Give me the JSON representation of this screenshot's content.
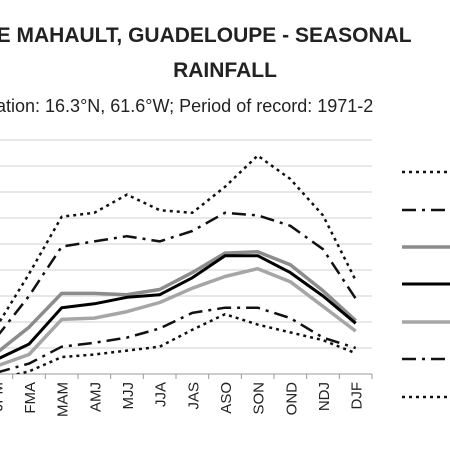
{
  "chart_data": {
    "type": "line",
    "title_line1": "LIE MAHAULT, GUADELOUPE - SEASONAL",
    "title_line2": "RAINFALL",
    "subtitle": "ation: 16.3°N, 61.6°W; Period of record: 1971-2",
    "categories": [
      "JFM",
      "FMA",
      "MAM",
      "AMJ",
      "MJJ",
      "JJA",
      "JAS",
      "ASO",
      "SON",
      "OND",
      "NDJ",
      "DJF"
    ],
    "ylim": [
      0,
      900
    ],
    "grid": true,
    "legend_position": "right",
    "series": [
      {
        "values": [
          180,
          385,
          605,
          620,
          690,
          630,
          620,
          720,
          840,
          750,
          610,
          360
        ],
        "dash": "3,4",
        "color": "#111111",
        "width": 2.5
      },
      {
        "values": [
          140,
          300,
          490,
          510,
          530,
          510,
          550,
          620,
          610,
          570,
          480,
          290
        ],
        "dash": "14,6,3,6",
        "color": "#111111",
        "width": 2.5
      },
      {
        "values": [
          80,
          180,
          310,
          310,
          305,
          325,
          390,
          465,
          470,
          420,
          320,
          205
        ],
        "dash": "",
        "color": "#8c8c8c",
        "width": 3.5
      },
      {
        "values": [
          55,
          115,
          255,
          270,
          295,
          305,
          370,
          455,
          455,
          390,
          300,
          195
        ],
        "dash": "",
        "color": "#000000",
        "width": 3
      },
      {
        "values": [
          30,
          75,
          210,
          215,
          240,
          275,
          330,
          375,
          405,
          355,
          260,
          165
        ],
        "dash": "",
        "color": "#a6a6a6",
        "width": 3.5
      },
      {
        "values": [
          5,
          40,
          105,
          120,
          140,
          175,
          235,
          255,
          255,
          215,
          140,
          100
        ],
        "dash": "14,6,3,6",
        "color": "#111111",
        "width": 2.5
      },
      {
        "values": [
          -20,
          10,
          65,
          75,
          90,
          105,
          170,
          230,
          190,
          160,
          130,
          80
        ],
        "dash": "3,4",
        "color": "#111111",
        "width": 2.5
      }
    ],
    "colors": {
      "grid": "#d0d0d0",
      "axis": "#9a9a9a",
      "text": "#222222"
    }
  }
}
